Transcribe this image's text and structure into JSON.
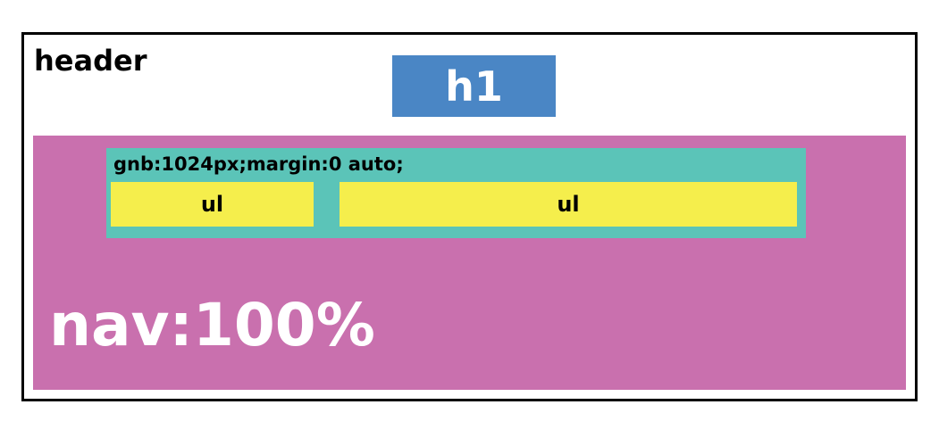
{
  "header": {
    "label": "header",
    "h1_label": "h1"
  },
  "nav": {
    "label": "nav:100%",
    "gnb": {
      "label": "gnb:1024px;margin:0 auto;",
      "lists": [
        {
          "label": "ul"
        },
        {
          "label": "ul"
        }
      ]
    }
  },
  "colors": {
    "border": "#000000",
    "h1_fill": "#4a86c5",
    "nav_fill": "#c970ae",
    "gnb_fill": "#5bc4b8",
    "ul_fill": "#f5ee4c"
  }
}
